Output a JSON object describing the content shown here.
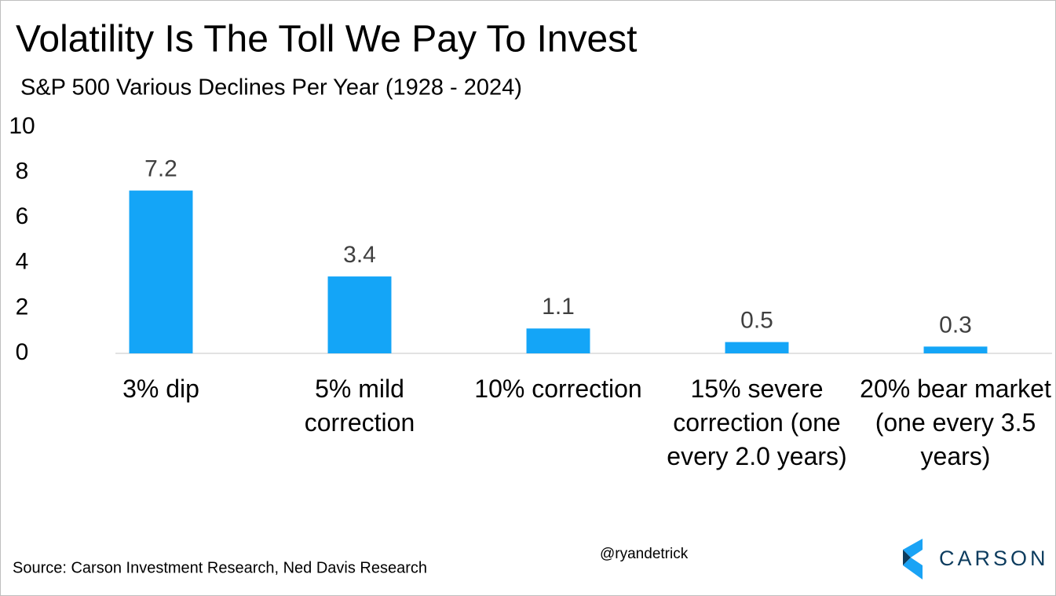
{
  "chart_data": {
    "type": "bar",
    "title": "Volatility Is The Toll We Pay To Invest",
    "subtitle": "S&P 500 Various Declines Per Year (1928 - 2024)",
    "categories": [
      "3% dip",
      "5% mild correction",
      "10% correction",
      "15% severe correction (one every 2.0 years)",
      "20% bear market (one every 3.5 years)"
    ],
    "values": [
      7.2,
      3.4,
      1.1,
      0.5,
      0.3
    ],
    "color": "#14a5f7",
    "ylim": [
      0,
      10
    ],
    "yticks": [
      0,
      2,
      4,
      6,
      8,
      10
    ],
    "grid": false,
    "source": "Source: Carson Investment  Research, Ned Davis Research",
    "handle": "@ryandetrick",
    "logo": "CARSON"
  }
}
